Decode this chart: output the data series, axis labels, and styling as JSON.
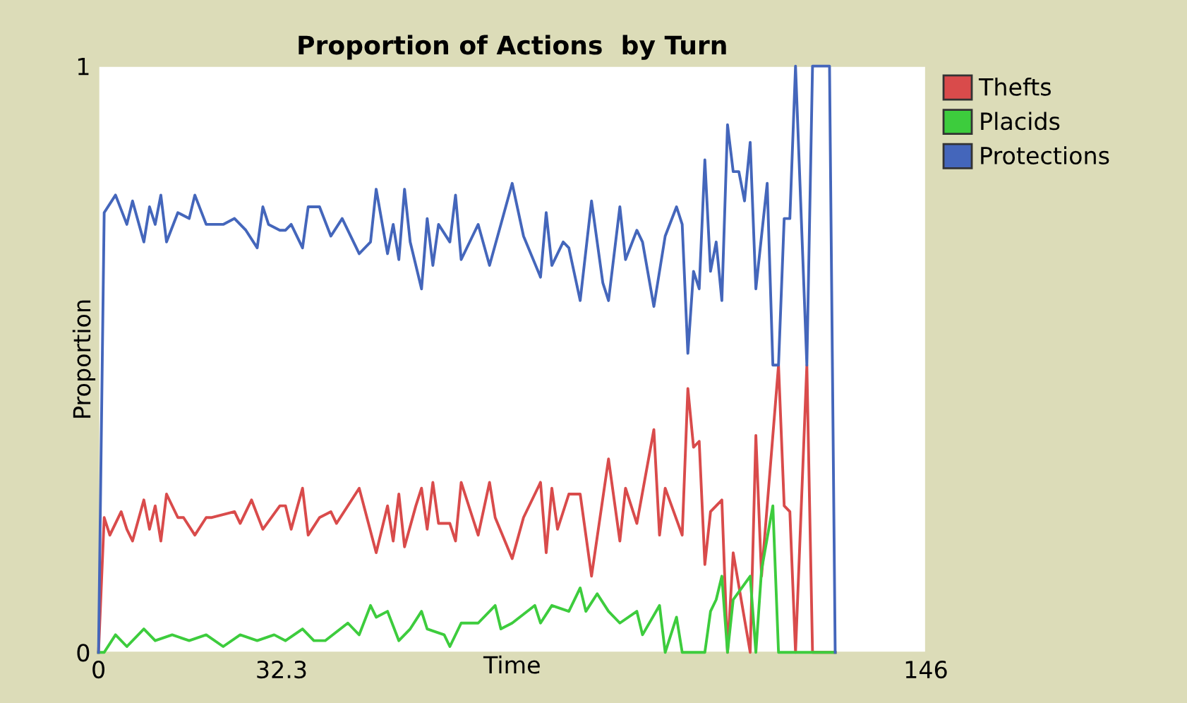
{
  "chart_data": {
    "type": "line",
    "title": "Proportion of Actions  by Turn",
    "xlabel": "Time",
    "ylabel": "Proportion",
    "xlim": [
      0,
      146
    ],
    "ylim": [
      0,
      1
    ],
    "xticks": [
      0,
      32.3,
      146
    ],
    "yticks": [
      0,
      1
    ],
    "grid": false,
    "legend": "right",
    "marker": "none",
    "line_style": "solid",
    "series": [
      {
        "name": "Thefts",
        "color": "#d94b4b",
        "x": [
          0,
          1,
          2,
          4,
          5,
          6,
          8,
          9,
          10,
          11,
          12,
          14,
          15,
          17,
          19,
          20,
          24,
          25,
          27,
          29,
          32,
          33,
          34,
          36,
          37,
          39,
          41,
          42,
          46,
          49,
          51,
          52,
          53,
          54,
          56,
          57,
          58,
          59,
          60,
          62,
          63,
          64,
          66,
          67,
          69,
          70,
          73,
          75,
          78,
          79,
          80,
          81,
          83,
          85,
          87,
          90,
          92,
          93,
          95,
          98,
          99,
          100,
          103,
          104,
          105,
          106,
          107,
          108,
          109,
          110,
          111,
          112,
          115,
          116,
          117,
          120,
          121,
          122,
          123,
          125,
          126,
          130
        ],
        "values": [
          0,
          0.23,
          0.2,
          0.24,
          0.21,
          0.19,
          0.26,
          0.21,
          0.25,
          0.19,
          0.27,
          0.23,
          0.23,
          0.2,
          0.23,
          0.23,
          0.24,
          0.22,
          0.26,
          0.21,
          0.25,
          0.25,
          0.21,
          0.28,
          0.2,
          0.23,
          0.24,
          0.22,
          0.28,
          0.17,
          0.25,
          0.19,
          0.27,
          0.18,
          0.25,
          0.28,
          0.21,
          0.29,
          0.22,
          0.22,
          0.19,
          0.29,
          0.23,
          0.2,
          0.29,
          0.23,
          0.16,
          0.23,
          0.29,
          0.17,
          0.28,
          0.21,
          0.27,
          0.27,
          0.13,
          0.33,
          0.19,
          0.28,
          0.22,
          0.38,
          0.2,
          0.28,
          0.2,
          0.45,
          0.35,
          0.36,
          0.15,
          0.24,
          0.25,
          0.26,
          0,
          0.17,
          0,
          0.37,
          0.13,
          0.49,
          0.25,
          0.24,
          0,
          0.49,
          0,
          0
        ]
      },
      {
        "name": "Placids",
        "color": "#3dcc3d",
        "x": [
          0,
          1,
          3,
          5,
          8,
          10,
          13,
          16,
          19,
          22,
          25,
          28,
          31,
          33,
          36,
          38,
          40,
          44,
          46,
          48,
          49,
          51,
          53,
          55,
          57,
          58,
          61,
          62,
          64,
          67,
          70,
          71,
          73,
          77,
          78,
          80,
          83,
          85,
          86,
          88,
          90,
          92,
          95,
          96,
          99,
          100,
          102,
          103,
          104,
          107,
          108,
          109,
          110,
          111,
          112,
          115,
          116,
          117,
          119,
          120,
          130
        ],
        "values": [
          0,
          0,
          0.03,
          0.01,
          0.04,
          0.02,
          0.03,
          0.02,
          0.03,
          0.01,
          0.03,
          0.02,
          0.03,
          0.02,
          0.04,
          0.02,
          0.02,
          0.05,
          0.03,
          0.08,
          0.06,
          0.07,
          0.02,
          0.04,
          0.07,
          0.04,
          0.03,
          0.01,
          0.05,
          0.05,
          0.08,
          0.04,
          0.05,
          0.08,
          0.05,
          0.08,
          0.07,
          0.11,
          0.07,
          0.1,
          0.07,
          0.05,
          0.07,
          0.03,
          0.08,
          0,
          0.06,
          0,
          0,
          0,
          0.07,
          0.09,
          0.13,
          0,
          0.09,
          0.13,
          0,
          0.14,
          0.25,
          0,
          0
        ]
      },
      {
        "name": "Protections",
        "color": "#4466bb",
        "x": [
          0,
          1,
          3,
          5,
          6,
          8,
          9,
          10,
          11,
          12,
          14,
          16,
          17,
          19,
          20,
          22,
          24,
          26,
          28,
          29,
          30,
          32,
          33,
          34,
          36,
          37,
          39,
          41,
          43,
          46,
          48,
          49,
          51,
          52,
          53,
          54,
          55,
          57,
          58,
          59,
          60,
          62,
          63,
          64,
          66,
          67,
          69,
          71,
          73,
          75,
          78,
          79,
          80,
          82,
          83,
          85,
          87,
          89,
          90,
          92,
          93,
          95,
          96,
          98,
          100,
          102,
          103,
          104,
          105,
          106,
          107,
          108,
          109,
          110,
          111,
          112,
          113,
          114,
          115,
          116,
          118,
          119,
          120,
          121,
          122,
          123,
          125,
          126,
          129,
          130
        ],
        "values": [
          0,
          0.75,
          0.78,
          0.73,
          0.77,
          0.7,
          0.76,
          0.73,
          0.78,
          0.7,
          0.75,
          0.74,
          0.78,
          0.73,
          0.73,
          0.73,
          0.74,
          0.72,
          0.69,
          0.76,
          0.73,
          0.72,
          0.72,
          0.73,
          0.69,
          0.76,
          0.76,
          0.71,
          0.74,
          0.68,
          0.7,
          0.79,
          0.68,
          0.73,
          0.67,
          0.79,
          0.7,
          0.62,
          0.74,
          0.66,
          0.73,
          0.7,
          0.78,
          0.67,
          0.71,
          0.73,
          0.66,
          0.73,
          0.8,
          0.71,
          0.64,
          0.75,
          0.66,
          0.7,
          0.69,
          0.6,
          0.77,
          0.63,
          0.6,
          0.76,
          0.67,
          0.72,
          0.7,
          0.59,
          0.71,
          0.76,
          0.73,
          0.51,
          0.65,
          0.62,
          0.84,
          0.65,
          0.7,
          0.6,
          0.9,
          0.82,
          0.82,
          0.77,
          0.87,
          0.62,
          0.8,
          0.49,
          0.49,
          0.74,
          0.74,
          1,
          0.49,
          1,
          1,
          0
        ]
      }
    ]
  }
}
